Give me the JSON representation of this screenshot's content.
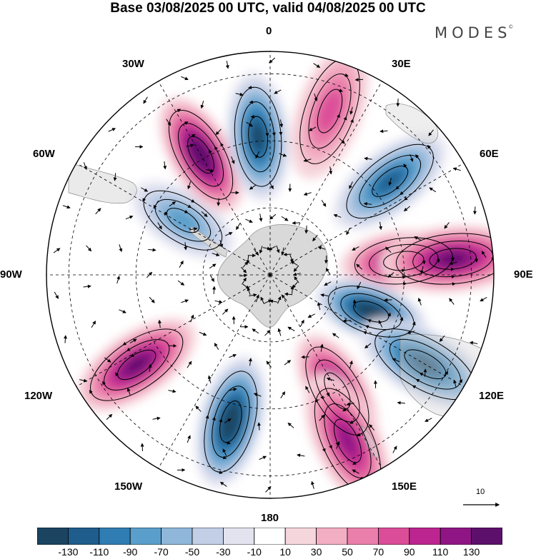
{
  "title": "Base 03/08/2025 00 UTC, valid 04/08/2025 00 UTC",
  "brand": "MODES",
  "brand_mark": "©",
  "longitude_labels": {
    "n0": "0",
    "n30e": "30E",
    "n60e": "60E",
    "n90e": "90E",
    "n120e": "120E",
    "n150e": "150E",
    "n180": "180",
    "n150w": "150W",
    "n120w": "120W",
    "n90w": "90W",
    "n60w": "60W",
    "n30w": "30W"
  },
  "vector_reference": "10",
  "colorbar": {
    "labels": [
      "-130",
      "-110",
      "-90",
      "-70",
      "-50",
      "-30",
      "-10",
      "10",
      "30",
      "50",
      "70",
      "90",
      "110",
      "130"
    ],
    "colors": [
      "#1b4461",
      "#1f5d8c",
      "#2f7db3",
      "#5a9fcb",
      "#8fb7da",
      "#c2cfe6",
      "#e3e3f0",
      "#ffffff",
      "#f6d6dd",
      "#f2aec2",
      "#ea7fab",
      "#db4d98",
      "#bc2590",
      "#8f1585",
      "#5d0f6c"
    ]
  },
  "colors": {
    "land": "#d9d9d9",
    "frame": "#000000"
  },
  "map_data": {
    "projection": "south-polar-stereographic",
    "anomalies": [
      {
        "lon_deg": 20,
        "r": 0.78,
        "value": 60
      },
      {
        "lon_deg": 52,
        "r": 0.68,
        "value": -90
      },
      {
        "lon_deg": 84,
        "r": 0.6,
        "value": 120
      },
      {
        "lon_deg": 85,
        "r": 0.82,
        "value": 110
      },
      {
        "lon_deg": 110,
        "r": 0.48,
        "value": -130
      },
      {
        "lon_deg": 120,
        "r": 0.8,
        "value": -110
      },
      {
        "lon_deg": 150,
        "r": 0.6,
        "value": 110
      },
      {
        "lon_deg": 155,
        "r": 0.82,
        "value": 100
      },
      {
        "lon_deg": 195,
        "r": 0.68,
        "value": -130
      },
      {
        "lon_deg": 236,
        "r": 0.72,
        "value": 120
      },
      {
        "lon_deg": 302,
        "r": 0.46,
        "value": -50
      },
      {
        "lon_deg": 330,
        "r": 0.62,
        "value": 130
      },
      {
        "lon_deg": 355,
        "r": 0.62,
        "value": -110
      }
    ]
  }
}
